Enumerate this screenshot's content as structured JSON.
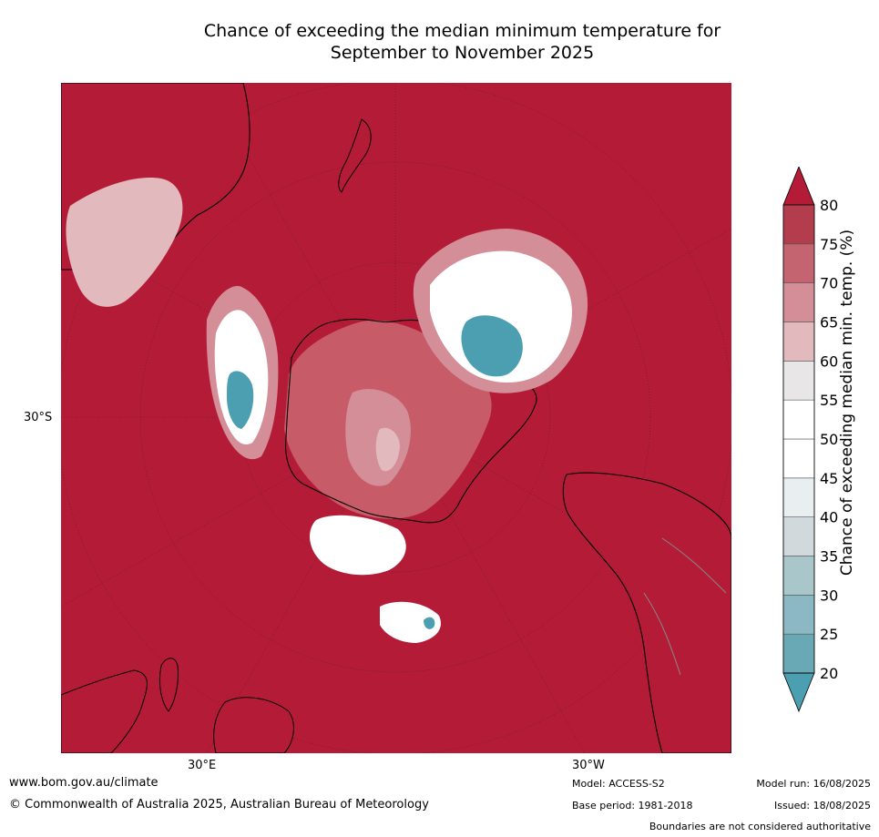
{
  "title_line1": "Chance of exceeding the median minimum temperature for",
  "title_line2": "September to November 2025",
  "map": {
    "projection": "south-polar-stereographic",
    "background_color": "#b31b37",
    "coastline_color": "#000000",
    "boundary_color": "#888888",
    "lat_label": "30°S",
    "lon_labels": [
      "30°E",
      "30°W"
    ]
  },
  "colorbar": {
    "title": "Chance of exceeding median min. temp. (%)",
    "ticks": [
      "20",
      "25",
      "30",
      "35",
      "40",
      "45",
      "50",
      "55",
      "60",
      "65",
      "70",
      "75",
      "80"
    ],
    "colors": [
      "#69a9b6",
      "#8bb8c2",
      "#a9c6cb",
      "#d1d9dc",
      "#e9eef1",
      "#ffffff",
      "#ffffff",
      "#e8e6e6",
      "#e2b9bd",
      "#d48e97",
      "#c46470",
      "#b33d4c"
    ],
    "under_color": "#4c9fb0",
    "over_color": "#b31b37"
  },
  "footer": {
    "url": "www.bom.gov.au/climate",
    "copyright": "© Commonwealth of Australia 2025, Australian Bureau of Meteorology",
    "model": "Model: ACCESS-S2",
    "base_period": "Base period: 1981-2018",
    "model_run": "Model run: 16/08/2025",
    "issued": "Issued: 18/08/2025",
    "disclaimer": "Boundaries are not considered authoritative"
  }
}
